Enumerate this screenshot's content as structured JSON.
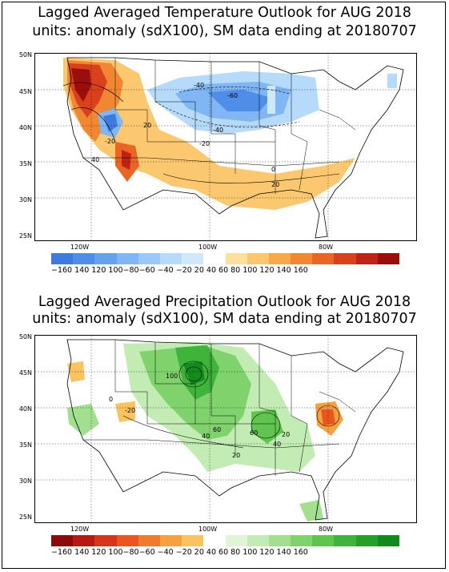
{
  "top_panel": {
    "title_line1": "Lagged Averaged Temperature Outlook for AUG 2018",
    "title_line2": "units: anomaly (sdX100), SM data ending at 20180707",
    "lat_labels": [
      "50N",
      "45N",
      "40N",
      "35N",
      "30N",
      "25N"
    ],
    "lon_labels": [
      "120W",
      "100W",
      "80W"
    ],
    "contour_labels": [
      "-40",
      "-60",
      "-40",
      "-20",
      "20",
      "-20",
      "40",
      "0",
      "20"
    ],
    "colorbar_ticks": "−160 140 120 100−80−60 −40 −20 20  40  60  80 100 120 140 160",
    "colorbar_colors": [
      "#3d7be0",
      "#4f8ee8",
      "#66a3ef",
      "#7fb6f3",
      "#9bc9f7",
      "#b5dafa",
      "#cfe8fc",
      "#ffffff",
      "#fde0a0",
      "#fbc870",
      "#f8a849",
      "#f28733",
      "#ea6424",
      "#d9401c",
      "#be2315",
      "#9b0e0c"
    ]
  },
  "bottom_panel": {
    "title_line1": "Lagged Averaged Precipitation Outlook for AUG 2018",
    "title_line2": "units: anomaly (sdX100), SM data ending at 20180707",
    "lat_labels": [
      "50N",
      "45N",
      "40N",
      "35N",
      "30N",
      "25N"
    ],
    "lon_labels": [
      "120W",
      "100W",
      "80W"
    ],
    "contour_labels": [
      "100",
      "-20",
      "60",
      "40",
      "20",
      "40",
      "20",
      "0",
      "60"
    ],
    "colorbar_ticks": "−160 140 120 100−80−60 −40 −20 20  40  60  80 100 120 140 160",
    "colorbar_colors": [
      "#8b0a0a",
      "#b51b12",
      "#d6351a",
      "#ea5520",
      "#f27a2c",
      "#f6a040",
      "#f9c460",
      "#ffffff",
      "#dff5d6",
      "#c2ecb3",
      "#a2e08f",
      "#80d36c",
      "#5fc54f",
      "#3fb43a",
      "#24a02a",
      "#108b1c"
    ]
  }
}
